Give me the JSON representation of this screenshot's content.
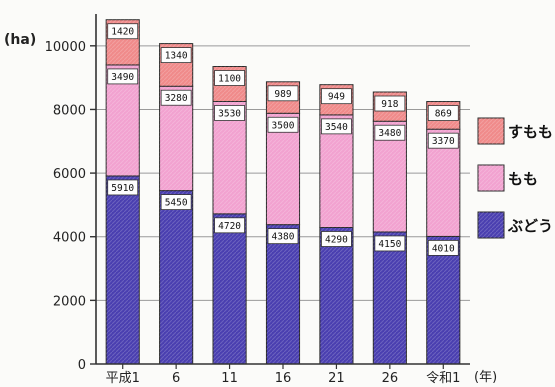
{
  "chart_data": {
    "type": "bar",
    "stacked": true,
    "y_unit": "(ha)",
    "x_unit": "(年)",
    "categories": [
      "平成1",
      "6",
      "11",
      "16",
      "21",
      "26",
      "令和1"
    ],
    "ylim": [
      0,
      11000
    ],
    "yticks": [
      0,
      2000,
      4000,
      6000,
      8000,
      10000
    ],
    "ytick_labels": [
      "0",
      "2000",
      "4000",
      "6000",
      "8000",
      "10000"
    ],
    "grid": true,
    "legend_position": "right",
    "series": [
      {
        "name": "ぶどう",
        "color": "#4a3fb0",
        "values": [
          5910,
          5450,
          4720,
          4380,
          4290,
          4150,
          4010
        ],
        "labels": [
          "5910",
          "5450",
          "4720",
          "4380",
          "4290",
          "4150",
          "4010"
        ]
      },
      {
        "name": "もも",
        "color": "#f2a2d0",
        "values": [
          3490,
          3280,
          3530,
          3500,
          3540,
          3480,
          3370
        ],
        "labels": [
          "3490",
          "3280",
          "3530",
          "3500",
          "3540",
          "3480",
          "3370"
        ]
      },
      {
        "name": "すもも",
        "color": "#f08a8a",
        "values": [
          1420,
          1340,
          1100,
          989,
          949,
          918,
          869
        ],
        "labels": [
          "1420",
          "1340",
          "1100",
          "989",
          "949",
          "918",
          "869"
        ]
      }
    ]
  }
}
